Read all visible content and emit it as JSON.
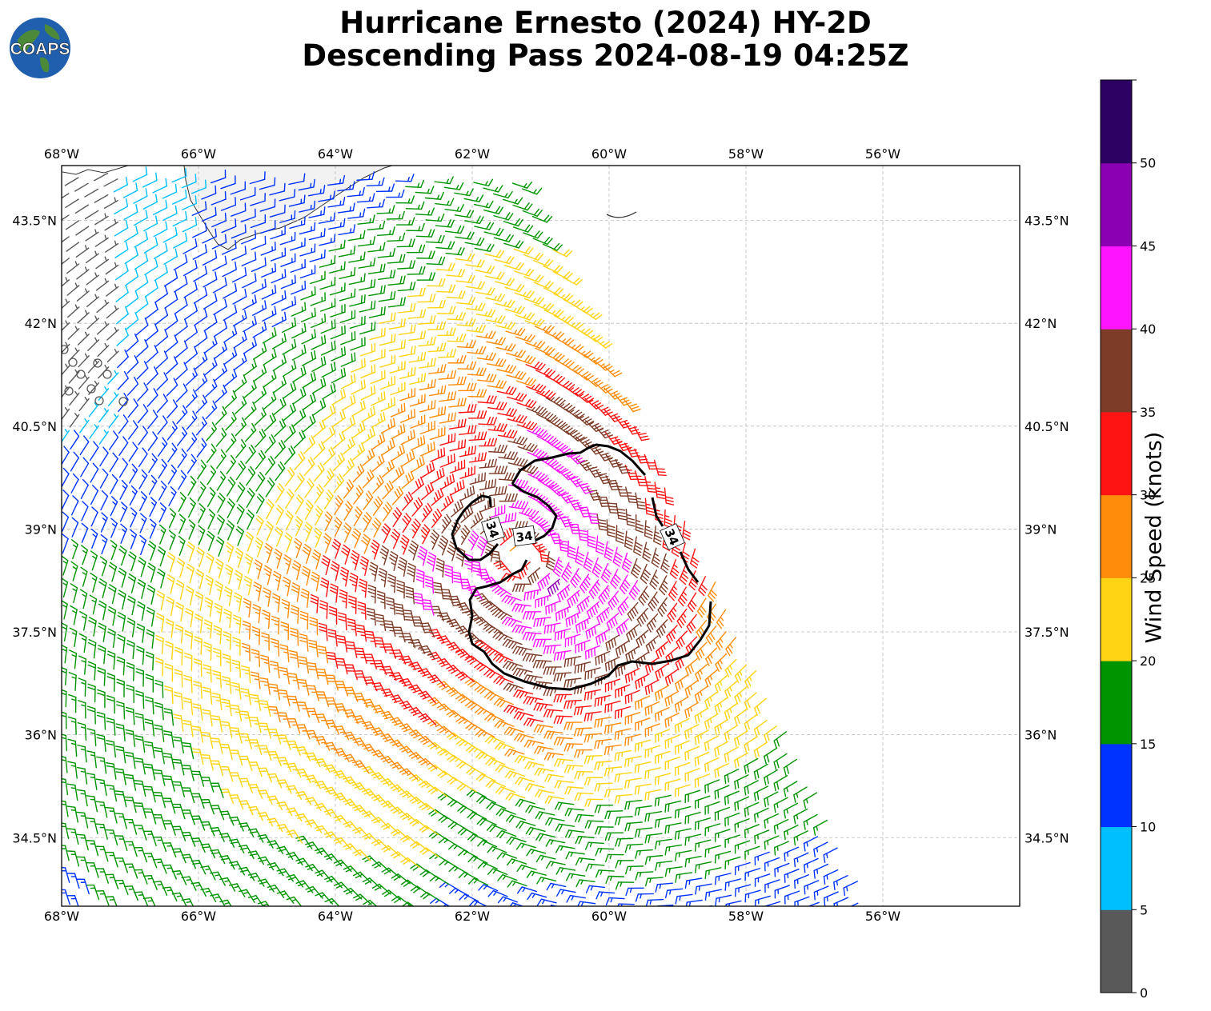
{
  "title": {
    "line1": "Hurricane Ernesto (2024) HY-2D",
    "line2": "Descending Pass 2024-08-19 04:25Z"
  },
  "logo": {
    "text": "COAPS",
    "icon": "globe-icon"
  },
  "map": {
    "projection": "PlateCarree",
    "lon_range": [
      -68,
      -54
    ],
    "lat_range": [
      33.5,
      44.3
    ],
    "lon_ticks": [
      "68°W",
      "66°W",
      "64°W",
      "62°W",
      "60°W",
      "58°W",
      "56°W"
    ],
    "lat_ticks": [
      "43.5°N",
      "42°N",
      "40.5°N",
      "39°N",
      "37.5°N",
      "36°N",
      "34.5°N"
    ],
    "gridlines": true,
    "land_color": "#f2f2f2",
    "coastline_color": "#333333"
  },
  "chart_data": {
    "type": "wind_barbs",
    "units": "knots",
    "storm_center_approx": {
      "lon": -61.3,
      "lat": 38.6
    },
    "wind_contour": {
      "value_knots": 34,
      "labels": [
        "34",
        "34",
        "34"
      ]
    },
    "color_bins": [
      {
        "min": 0,
        "max": 5,
        "color": "#595959"
      },
      {
        "min": 5,
        "max": 10,
        "color": "#00bfff"
      },
      {
        "min": 10,
        "max": 15,
        "color": "#0033ff"
      },
      {
        "min": 15,
        "max": 20,
        "color": "#009400"
      },
      {
        "min": 20,
        "max": 25,
        "color": "#ffd414"
      },
      {
        "min": 25,
        "max": 30,
        "color": "#ff8c0a"
      },
      {
        "min": 30,
        "max": 35,
        "color": "#ff1414"
      },
      {
        "min": 35,
        "max": 40,
        "color": "#7d3c28"
      },
      {
        "min": 40,
        "max": 45,
        "color": "#ff14ff"
      },
      {
        "min": 45,
        "max": 50,
        "color": "#8c00b4"
      },
      {
        "min": 50,
        "max": 55,
        "color": "#2d0064"
      }
    ]
  },
  "colorbar": {
    "label": "Wind Speed (knots)",
    "ticks": [
      "0",
      "5",
      "10",
      "15",
      "20",
      "25",
      "30",
      "35",
      "40",
      "45",
      "50"
    ]
  }
}
